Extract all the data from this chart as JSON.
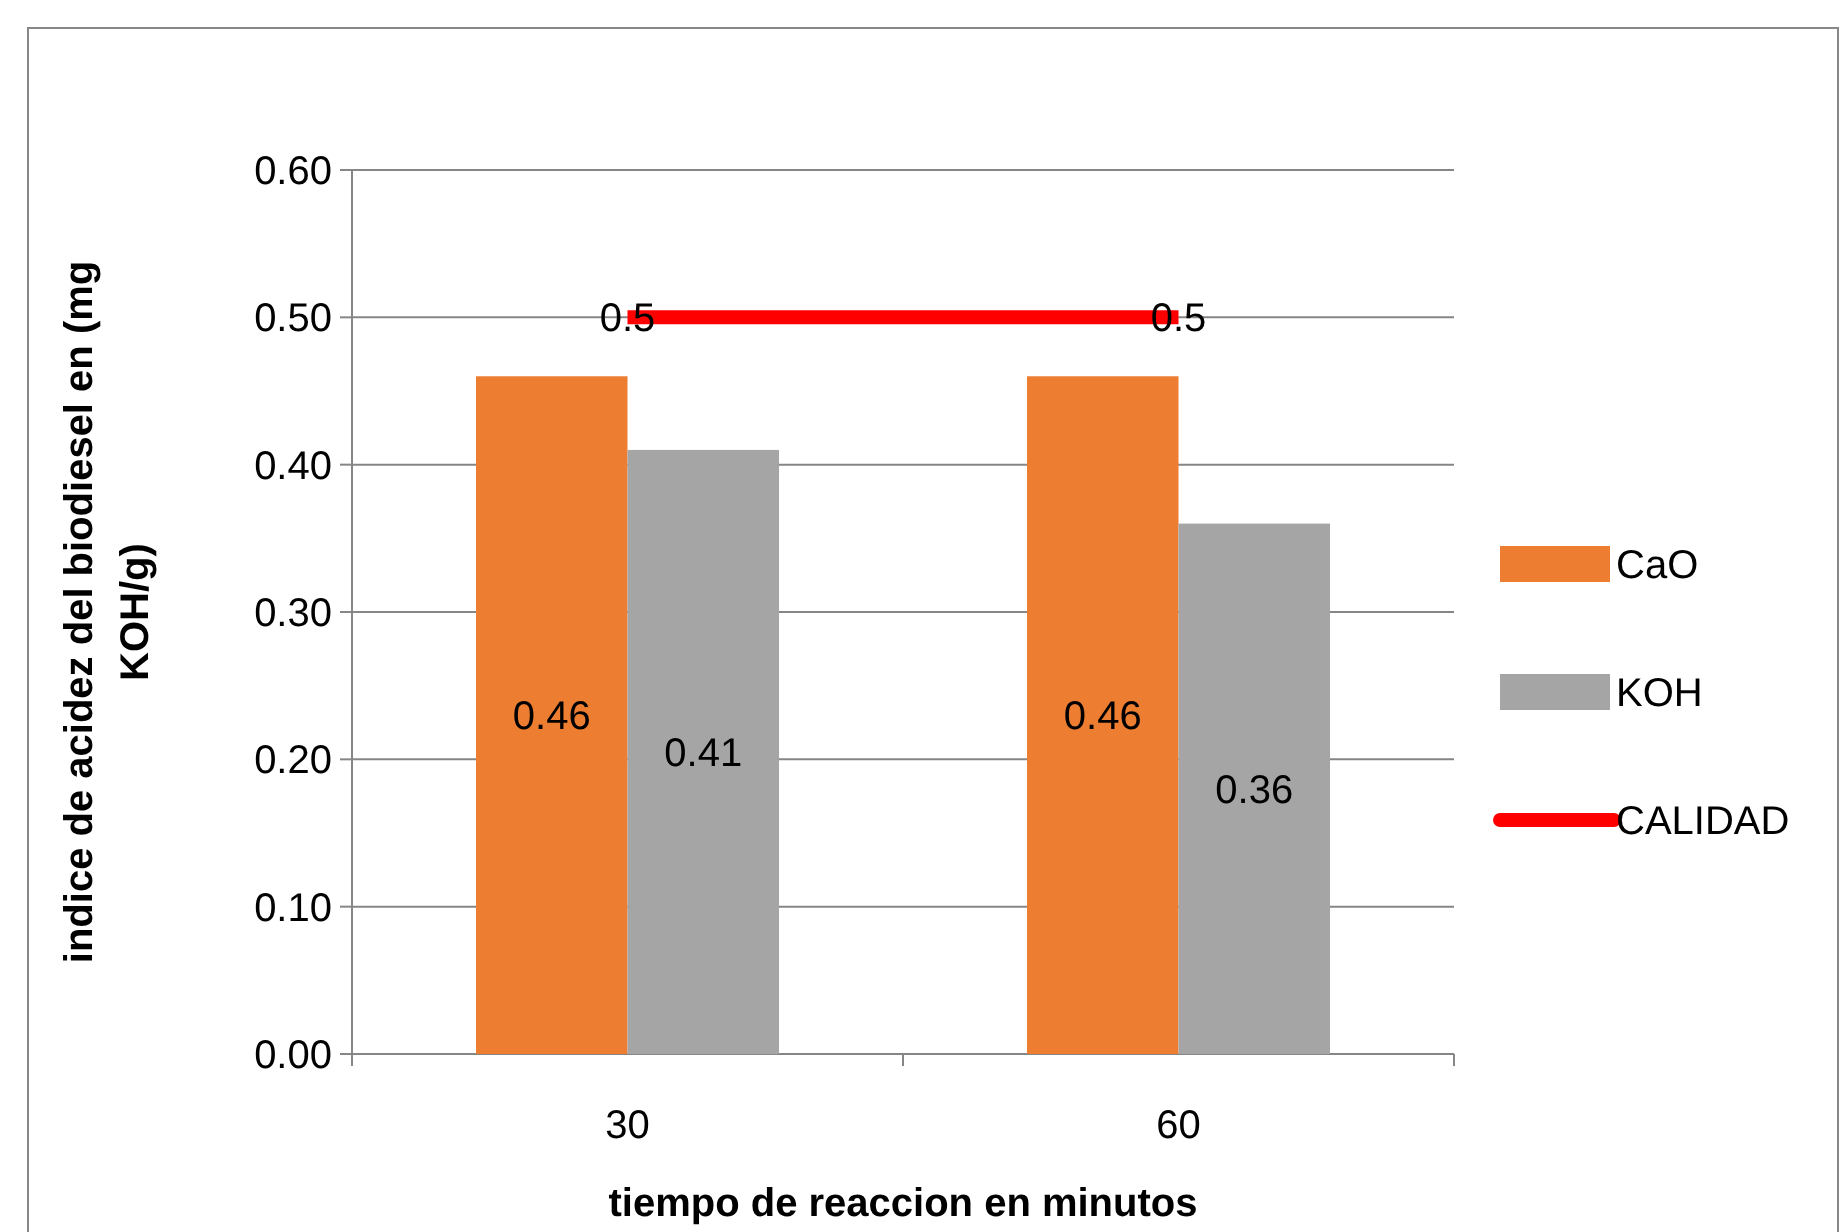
{
  "chart_data": {
    "type": "bar",
    "xlabel": "tiempo de reaccion en minutos",
    "ylabel": "indice de acidez del biodiesel en (mg KOH/g)",
    "categories": [
      "30",
      "60"
    ],
    "series": [
      {
        "name": "CaO",
        "color": "#ed7d31",
        "values": [
          0.46,
          0.46
        ]
      },
      {
        "name": "KOH",
        "color": "#a5a5a5",
        "values": [
          0.41,
          0.36
        ]
      },
      {
        "name": "CALIDAD",
        "type": "line",
        "color": "#ff0000",
        "values": [
          0.5,
          0.5
        ]
      }
    ],
    "ylim": [
      0,
      0.6
    ],
    "yticks": [
      {
        "value": 0,
        "label": "0.00"
      },
      {
        "value": 0.1,
        "label": "0.10"
      },
      {
        "value": 0.2,
        "label": "0.20"
      },
      {
        "value": 0.3,
        "label": "0.30"
      },
      {
        "value": 0.4,
        "label": "0.40"
      },
      {
        "value": 0.5,
        "label": "0.50"
      },
      {
        "value": 0.6,
        "label": "0.60"
      }
    ],
    "grid": "y",
    "legend": "right",
    "data_labels": true
  }
}
